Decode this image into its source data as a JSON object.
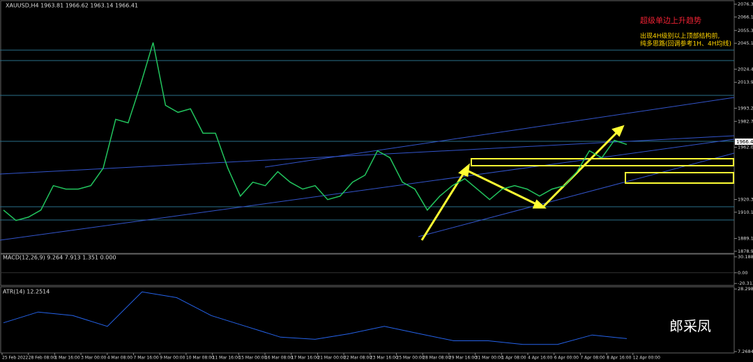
{
  "chart_data": {
    "type": "line",
    "title": "XAUUSD,H4  1963.81 1966.62 1963.14 1966.41",
    "annotations": [
      "超级单边上升趋势",
      "出现4H级别以上顶部结构前,",
      "纯多思路(回调参考1H、4H均线)"
    ],
    "watermark": "郎采凤",
    "price_label": "1966.41",
    "xtick_labels": [
      "25 Feb 2022",
      "28 Feb 08:00",
      "1 Mar 16:00",
      "3 Mar 00:00",
      "4 Mar 08:00",
      "7 Mar 16:00",
      "9 Mar 00:00",
      "10 Mar 08:00",
      "11 Mar 16:00",
      "15 Mar 00:00",
      "16 Mar 08:00",
      "17 Mar 16:00",
      "21 Mar 00:00",
      "22 Mar 08:00",
      "23 Mar 16:00",
      "25 Mar 00:00",
      "28 Mar 08:00",
      "29 Mar 16:00",
      "31 Mar 00:00",
      "1 Apr 08:00",
      "4 Apr 16:00",
      "6 Apr 00:00",
      "7 Apr 08:00",
      "8 Apr 16:00",
      "12 Apr 00:00"
    ],
    "series": [
      {
        "name": "XAUUSD",
        "color": "#22c55e",
        "values": [
          1911.8,
          1903.5,
          1906.2,
          1911.8,
          1931.3,
          1928.6,
          1928.6,
          1931.3,
          1945.3,
          1984.3,
          1981.5,
          2012.2,
          2045.7,
          1995.5,
          1989.9,
          1992.7,
          1973.2,
          1973.2,
          1945.3,
          1923.0,
          1934.1,
          1931.3,
          1942.5,
          1934.1,
          1928.6,
          1931.3,
          1920.2,
          1923.0,
          1934.1,
          1939.7,
          1959.2,
          1953.6,
          1934.1,
          1928.6,
          1911.8,
          1923.0,
          1931.3,
          1936.9,
          1928.6,
          1920.2,
          1928.6,
          1931.3,
          1928.6,
          1923.0,
          1928.6,
          1931.3,
          1942.5,
          1959.2,
          1953.6,
          1967.6,
          1964.2
        ]
      }
    ],
    "ylim": [
      1877.2,
      2079.1
    ],
    "yticks": [
      {
        "value": 2076.3,
        "label": "2076.30"
      },
      {
        "value": 2066.1,
        "label": "2066.10"
      },
      {
        "value": 2055.3,
        "label": "2055.30"
      },
      {
        "value": 2045.1,
        "label": "2045.10"
      },
      {
        "value": 2024.4,
        "label": "2024.40"
      },
      {
        "value": 2013.9,
        "label": "2013.90"
      },
      {
        "value": 1993.2,
        "label": "1993.20"
      },
      {
        "value": 1982.7,
        "label": "1982.70"
      },
      {
        "value": 1962,
        "label": "1962.00"
      },
      {
        "value": 1920.3,
        "label": "1920.30"
      },
      {
        "value": 1910.1,
        "label": "1910.10"
      },
      {
        "value": 1889.1,
        "label": "1889.10"
      },
      {
        "value": 1878.9,
        "label": "1878.90"
      }
    ],
    "macd": {
      "label": "MACD(12,26,9) 9.264 7.913 1.351 0.000",
      "ylim": [
        -24,
        34
      ],
      "yticks": [
        30.188,
        {
          "value": 0,
          "label": "0.00"
        },
        -20.313
      ]
    },
    "atr": {
      "label": "ATR(14) 12.2514",
      "color": "#2563eb",
      "values": [
        16.94,
        20.56,
        19.36,
        15.73,
        27.33,
        25.4,
        19.36,
        15.73,
        12.11,
        11.38,
        13.31,
        15.73,
        13.31,
        10.9,
        10.9,
        9.69,
        9.69,
        12.83,
        11.62
      ],
      "ylim": [
        6.8,
        28.8
      ],
      "yticks": [
        28.2988,
        7.2684
      ]
    }
  }
}
